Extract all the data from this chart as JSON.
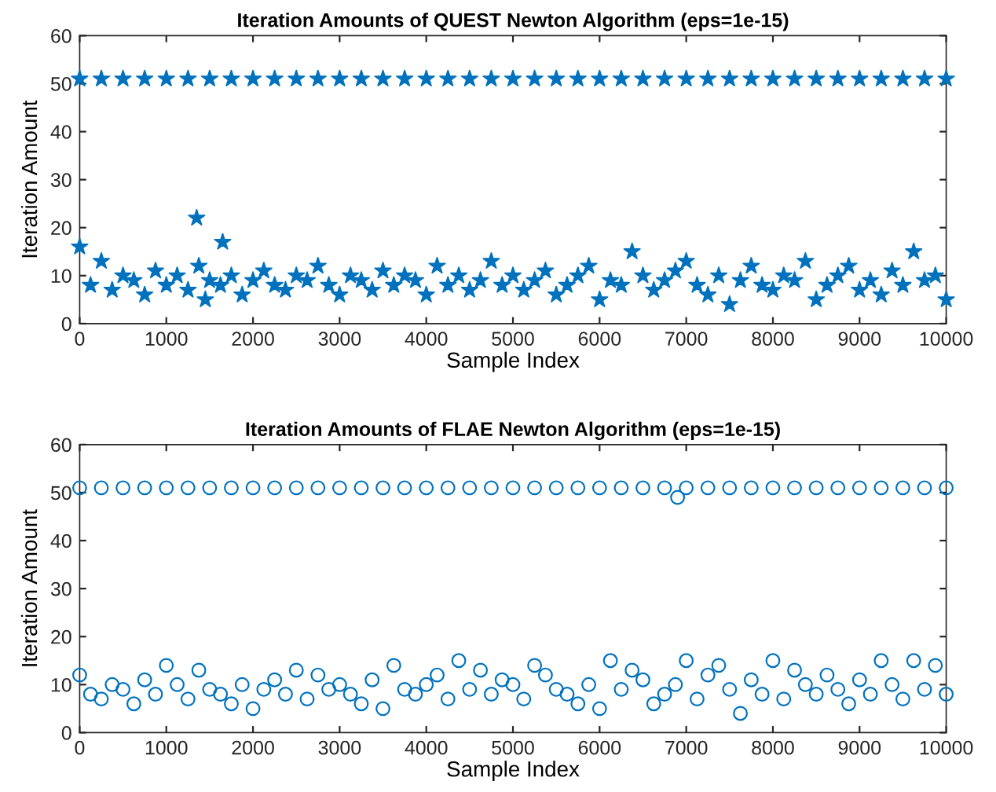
{
  "chart_data": [
    {
      "type": "scatter",
      "title": "Iteration Amounts of QUEST Newton Algorithm (eps=1e-15)",
      "xlabel": "Sample Index",
      "ylabel": "Iteration Amount",
      "xlim": [
        0,
        10000
      ],
      "ylim": [
        0,
        60
      ],
      "xticks": [
        0,
        1000,
        2000,
        3000,
        4000,
        5000,
        6000,
        7000,
        8000,
        9000,
        10000
      ],
      "yticks": [
        0,
        10,
        20,
        30,
        40,
        50,
        60
      ],
      "marker": "star",
      "series": [
        {
          "color": "#0072bd",
          "x": [
            0,
            250,
            500,
            750,
            1000,
            1250,
            1500,
            1750,
            2000,
            2250,
            2500,
            2750,
            3000,
            3250,
            3500,
            3750,
            4000,
            4250,
            4500,
            4750,
            5000,
            5250,
            5500,
            5750,
            6000,
            6250,
            6500,
            6750,
            7000,
            7250,
            7500,
            7750,
            8000,
            8250,
            8500,
            8750,
            9000,
            9250,
            9500,
            9750,
            10000
          ],
          "values": [
            51,
            51,
            51,
            51,
            51,
            51,
            51,
            51,
            51,
            51,
            51,
            51,
            51,
            51,
            51,
            51,
            51,
            51,
            51,
            51,
            51,
            51,
            51,
            51,
            51,
            51,
            51,
            51,
            51,
            51,
            51,
            51,
            51,
            51,
            51,
            51,
            51,
            51,
            51,
            51,
            51
          ]
        },
        {
          "color": "#0072bd",
          "x": [
            0,
            125,
            250,
            375,
            500,
            625,
            750,
            875,
            1000,
            1125,
            1250,
            1375,
            1500,
            1625,
            1750,
            1875,
            2000,
            2125,
            2250,
            2375,
            2500,
            2625,
            2750,
            2875,
            3000,
            3125,
            3250,
            3375,
            3500,
            3625,
            3750,
            3875,
            4000,
            4125,
            4250,
            4375,
            4500,
            4625,
            4750,
            4875,
            5000,
            5125,
            5250,
            5375,
            5500,
            5625,
            5750,
            5875,
            6000,
            6125,
            6250,
            6375,
            6500,
            6625,
            6750,
            6875,
            7000,
            7125,
            7250,
            7375,
            7500,
            7625,
            7750,
            7875,
            8000,
            8125,
            8250,
            8375,
            8500,
            8625,
            8750,
            8875,
            9000,
            9125,
            9250,
            9375,
            9500,
            9625,
            9750,
            9875,
            10000,
            1350,
            1650,
            1450
          ],
          "values": [
            16,
            8,
            13,
            7,
            10,
            9,
            6,
            11,
            8,
            10,
            7,
            12,
            9,
            8,
            10,
            6,
            9,
            11,
            8,
            7,
            10,
            9,
            12,
            8,
            6,
            10,
            9,
            7,
            11,
            8,
            10,
            9,
            6,
            12,
            8,
            10,
            7,
            9,
            13,
            8,
            10,
            7,
            9,
            11,
            6,
            8,
            10,
            12,
            5,
            9,
            8,
            15,
            10,
            7,
            9,
            11,
            13,
            8,
            6,
            10,
            4,
            9,
            12,
            8,
            7,
            10,
            9,
            13,
            5,
            8,
            10,
            12,
            7,
            9,
            6,
            11,
            8,
            15,
            9,
            10,
            5,
            22,
            17,
            5
          ]
        }
      ]
    },
    {
      "type": "scatter",
      "title": "Iteration Amounts of FLAE Newton Algorithm (eps=1e-15)",
      "xlabel": "Sample Index",
      "ylabel": "Iteration Amount",
      "xlim": [
        0,
        10000
      ],
      "ylim": [
        0,
        60
      ],
      "xticks": [
        0,
        1000,
        2000,
        3000,
        4000,
        5000,
        6000,
        7000,
        8000,
        9000,
        10000
      ],
      "yticks": [
        0,
        10,
        20,
        30,
        40,
        50,
        60
      ],
      "marker": "circle",
      "series": [
        {
          "color": "#0072bd",
          "x": [
            0,
            250,
            500,
            750,
            1000,
            1250,
            1500,
            1750,
            2000,
            2250,
            2500,
            2750,
            3000,
            3250,
            3500,
            3750,
            4000,
            4250,
            4500,
            4750,
            5000,
            5250,
            5500,
            5750,
            6000,
            6250,
            6500,
            6750,
            6900,
            7000,
            7250,
            7500,
            7750,
            8000,
            8250,
            8500,
            8750,
            9000,
            9250,
            9500,
            9750,
            10000
          ],
          "values": [
            51,
            51,
            51,
            51,
            51,
            51,
            51,
            51,
            51,
            51,
            51,
            51,
            51,
            51,
            51,
            51,
            51,
            51,
            51,
            51,
            51,
            51,
            51,
            51,
            51,
            51,
            51,
            51,
            49,
            51,
            51,
            51,
            51,
            51,
            51,
            51,
            51,
            51,
            51,
            51,
            51,
            51
          ]
        },
        {
          "color": "#0072bd",
          "x": [
            0,
            125,
            250,
            375,
            500,
            625,
            750,
            875,
            1000,
            1125,
            1250,
            1375,
            1500,
            1625,
            1750,
            1875,
            2000,
            2125,
            2250,
            2375,
            2500,
            2625,
            2750,
            2875,
            3000,
            3125,
            3250,
            3375,
            3500,
            3625,
            3750,
            3875,
            4000,
            4125,
            4250,
            4375,
            4500,
            4625,
            4750,
            4875,
            5000,
            5125,
            5250,
            5375,
            5500,
            5625,
            5750,
            5875,
            6000,
            6125,
            6250,
            6375,
            6500,
            6625,
            6750,
            6875,
            7000,
            7125,
            7250,
            7375,
            7500,
            7625,
            7750,
            7875,
            8000,
            8125,
            8250,
            8375,
            8500,
            8625,
            8750,
            8875,
            9000,
            9125,
            9250,
            9375,
            9500,
            9625,
            9750,
            9875,
            10000
          ],
          "values": [
            12,
            8,
            7,
            10,
            9,
            6,
            11,
            8,
            14,
            10,
            7,
            13,
            9,
            8,
            6,
            10,
            5,
            9,
            11,
            8,
            13,
            7,
            12,
            9,
            10,
            8,
            6,
            11,
            5,
            14,
            9,
            8,
            10,
            12,
            7,
            15,
            9,
            13,
            8,
            11,
            10,
            7,
            14,
            12,
            9,
            8,
            6,
            10,
            5,
            15,
            9,
            13,
            11,
            6,
            8,
            10,
            15,
            7,
            12,
            14,
            9,
            4,
            11,
            8,
            15,
            7,
            13,
            10,
            8,
            12,
            9,
            6,
            11,
            8,
            15,
            10,
            7,
            15,
            9,
            14,
            8
          ]
        }
      ]
    }
  ]
}
